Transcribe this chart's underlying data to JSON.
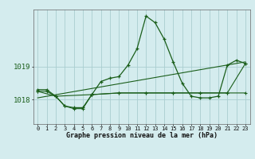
{
  "title": "Graphe pression niveau de la mer (hPa)",
  "background_color": "#d4ecee",
  "grid_color": "#aacdd0",
  "line_color": "#1a5e1a",
  "xlim": [
    -0.5,
    23.5
  ],
  "ylim": [
    1017.25,
    1020.75
  ],
  "yticks": [
    1018,
    1019
  ],
  "xticks": [
    0,
    1,
    2,
    3,
    4,
    5,
    6,
    7,
    8,
    9,
    10,
    11,
    12,
    13,
    14,
    15,
    16,
    17,
    18,
    19,
    20,
    21,
    22,
    23
  ],
  "series1_x": [
    0,
    1,
    2,
    3,
    4,
    5,
    6,
    7,
    8,
    9,
    10,
    11,
    12,
    13,
    14,
    15,
    16,
    17,
    18,
    19,
    20,
    21,
    22,
    23
  ],
  "series1_y": [
    1018.3,
    1018.3,
    1018.1,
    1017.8,
    1017.75,
    1017.75,
    1018.15,
    1018.55,
    1018.65,
    1018.7,
    1019.05,
    1019.55,
    1020.55,
    1020.35,
    1019.85,
    1019.15,
    1018.5,
    1018.1,
    1018.05,
    1018.05,
    1018.1,
    1019.05,
    1019.2,
    1019.1
  ],
  "series2_x": [
    0,
    2,
    3,
    4,
    5,
    6,
    9,
    12,
    15,
    18,
    21,
    23
  ],
  "series2_y": [
    1018.25,
    1018.1,
    1017.8,
    1017.72,
    1017.72,
    1018.15,
    1018.2,
    1018.2,
    1018.2,
    1018.2,
    1018.2,
    1019.1
  ],
  "series3_x": [
    0,
    23
  ],
  "series3_y": [
    1018.05,
    1019.15
  ],
  "series4_x": [
    0,
    1,
    2,
    6,
    9,
    12,
    15,
    18,
    21,
    23
  ],
  "series4_y": [
    1018.25,
    1018.25,
    1018.1,
    1018.15,
    1018.2,
    1018.2,
    1018.2,
    1018.2,
    1018.2,
    1018.2
  ]
}
